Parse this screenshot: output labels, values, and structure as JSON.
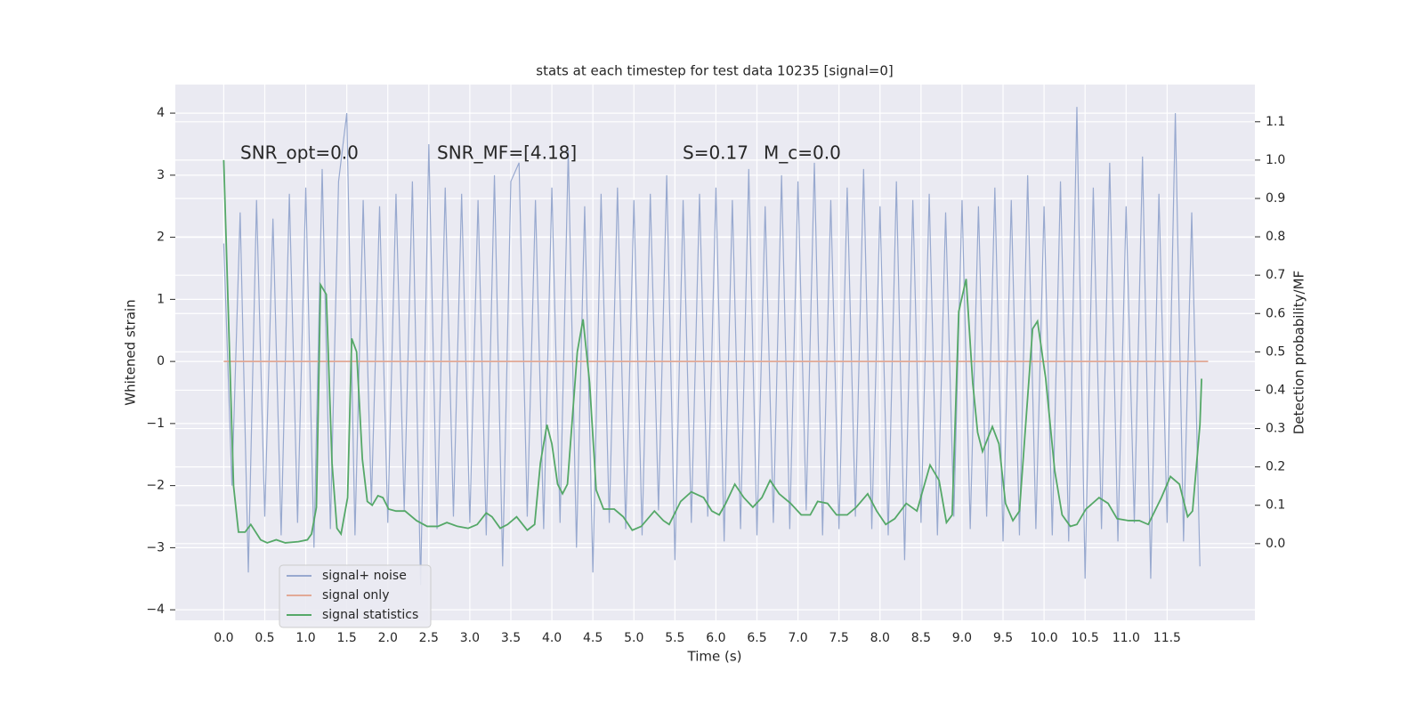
{
  "chart_data": {
    "type": "line",
    "title": "stats at each timestep for test data 10235 [signal=0]",
    "xlabel": "Time (s)",
    "ylabel": "Whitened strain",
    "y2label": "Detection probability/MF",
    "annotations": [
      "SNR_opt=0.0",
      "SNR_MF=[4.18]",
      "S=0.17",
      "M_c=0.0"
    ],
    "xlim": [
      -0.59,
      12.57
    ],
    "ylim": [
      -4.17,
      4.46
    ],
    "y2lim": [
      -0.2,
      1.197
    ],
    "xticks": [
      {
        "value": 0,
        "label": "0.0"
      },
      {
        "value": 0.5,
        "label": "0.5"
      },
      {
        "value": 1,
        "label": "1.0"
      },
      {
        "value": 1.5,
        "label": "1.5"
      },
      {
        "value": 2,
        "label": "2.0"
      },
      {
        "value": 2.5,
        "label": "2.5"
      },
      {
        "value": 3,
        "label": "3.0"
      },
      {
        "value": 3.5,
        "label": "3.5"
      },
      {
        "value": 4,
        "label": "4.0"
      },
      {
        "value": 4.5,
        "label": "4.5"
      },
      {
        "value": 5,
        "label": "5.0"
      },
      {
        "value": 5.5,
        "label": "5.5"
      },
      {
        "value": 6,
        "label": "6.0"
      },
      {
        "value": 6.5,
        "label": "6.5"
      },
      {
        "value": 7,
        "label": "7.0"
      },
      {
        "value": 7.5,
        "label": "7.5"
      },
      {
        "value": 8,
        "label": "8.0"
      },
      {
        "value": 8.5,
        "label": "8.5"
      },
      {
        "value": 9,
        "label": "9.0"
      },
      {
        "value": 9.5,
        "label": "9.5"
      },
      {
        "value": 10,
        "label": "10.0"
      },
      {
        "value": 10.5,
        "label": "10.5"
      },
      {
        "value": 11,
        "label": "11.0"
      },
      {
        "value": 11.5,
        "label": "11.5"
      }
    ],
    "yticks": [
      {
        "value": -4,
        "label": "−4"
      },
      {
        "value": -3,
        "label": "−3"
      },
      {
        "value": -2,
        "label": "−2"
      },
      {
        "value": -1,
        "label": "−1"
      },
      0,
      1,
      2,
      3,
      4
    ],
    "y2ticks": [
      {
        "value": 0,
        "label": "0.0"
      },
      {
        "value": 0.1,
        "label": "0.1"
      },
      {
        "value": 0.2,
        "label": "0.2"
      },
      {
        "value": 0.3,
        "label": "0.3"
      },
      {
        "value": 0.4,
        "label": "0.4"
      },
      {
        "value": 0.5,
        "label": "0.5"
      },
      {
        "value": 0.6,
        "label": "0.6"
      },
      {
        "value": 0.7,
        "label": "0.7"
      },
      {
        "value": 0.8,
        "label": "0.8"
      },
      {
        "value": 0.9,
        "label": "0.9"
      },
      {
        "value": 1,
        "label": "1.0"
      },
      {
        "value": 1.1,
        "label": "1.1"
      }
    ],
    "grid": true,
    "legend": "lower left",
    "series": [
      {
        "name": "signal+ noise",
        "color": "#98a9cf",
        "x": [
          0,
          0.1,
          0.2,
          0.3,
          0.4,
          0.5,
          0.6,
          0.7,
          0.8,
          0.9,
          1,
          1.1,
          1.2,
          1.3,
          1.4,
          1.5,
          1.6,
          1.7,
          1.8,
          1.9,
          2,
          2.1,
          2.2,
          2.3,
          2.4,
          2.5,
          2.6,
          2.7,
          2.8,
          2.9,
          3,
          3.1,
          3.2,
          3.3,
          3.4,
          3.5,
          3.6,
          3.7,
          3.8,
          3.9,
          4,
          4.1,
          4.2,
          4.3,
          4.4,
          4.5,
          4.6,
          4.7,
          4.8,
          4.9,
          5,
          5.1,
          5.2,
          5.3,
          5.4,
          5.5,
          5.6,
          5.7,
          5.8,
          5.9,
          6,
          6.1,
          6.2,
          6.3,
          6.4,
          6.5,
          6.6,
          6.7,
          6.8,
          6.9,
          7,
          7.1,
          7.2,
          7.3,
          7.4,
          7.5,
          7.6,
          7.7,
          7.8,
          7.9,
          8,
          8.1,
          8.2,
          8.3,
          8.4,
          8.5,
          8.6,
          8.7,
          8.8,
          8.9,
          9,
          9.1,
          9.2,
          9.3,
          9.4,
          9.5,
          9.6,
          9.7,
          9.8,
          9.9,
          10,
          10.1,
          10.2,
          10.3,
          10.4,
          10.5,
          10.6,
          10.7,
          10.8,
          10.9,
          11,
          11.1,
          11.2,
          11.3,
          11.4,
          11.5,
          11.6,
          11.7,
          11.8,
          11.9
        ],
        "values": [
          1.9,
          -2.0,
          2.4,
          -3.4,
          2.6,
          -2.5,
          2.3,
          -2.8,
          2.7,
          -2.6,
          2.8,
          -3.0,
          3.1,
          -2.7,
          2.9,
          4.0,
          -2.8,
          2.6,
          -2.3,
          2.5,
          -2.6,
          2.7,
          -2.4,
          2.9,
          -3.6,
          3.5,
          -2.7,
          2.8,
          -2.5,
          2.7,
          -2.6,
          2.6,
          -2.8,
          3.0,
          -3.3,
          2.9,
          3.2,
          -2.5,
          2.6,
          -2.7,
          2.8,
          -2.6,
          3.4,
          -3.0,
          2.5,
          -3.4,
          2.7,
          -2.6,
          2.8,
          -2.7,
          2.6,
          -2.8,
          2.7,
          -2.4,
          3.0,
          -3.2,
          2.6,
          -2.6,
          2.7,
          -2.5,
          2.8,
          -2.9,
          2.6,
          -2.7,
          3.1,
          -2.8,
          2.5,
          -2.6,
          3.0,
          -2.7,
          2.9,
          -2.4,
          3.2,
          -2.8,
          2.6,
          -2.7,
          2.8,
          -2.5,
          3.1,
          -2.7,
          2.5,
          -2.8,
          2.9,
          -3.2,
          2.6,
          -2.6,
          2.7,
          -2.8,
          2.4,
          -2.5,
          2.6,
          -2.7,
          2.5,
          -2.5,
          2.8,
          -2.9,
          2.6,
          -2.8,
          3.0,
          -2.7,
          2.5,
          -2.8,
          2.9,
          -2.9,
          4.1,
          -3.5,
          2.8,
          -2.7,
          3.2,
          -2.9,
          2.5,
          -2.6,
          3.3,
          -3.5,
          2.7,
          -2.6,
          4.0,
          -2.9,
          2.4,
          -3.3
        ]
      },
      {
        "name": "signal only",
        "color": "#e2a996",
        "x": [
          0,
          12
        ],
        "values": [
          0,
          0
        ]
      },
      {
        "name": "signal statistics",
        "color": "#55a868",
        "axis": "y2",
        "x": [
          0,
          0.12,
          0.18,
          0.26,
          0.33,
          0.45,
          0.53,
          0.64,
          0.75,
          0.91,
          1.02,
          1.07,
          1.13,
          1.18,
          1.25,
          1.32,
          1.38,
          1.43,
          1.51,
          1.56,
          1.62,
          1.69,
          1.75,
          1.81,
          1.88,
          1.94,
          2.01,
          2.1,
          2.21,
          2.35,
          2.48,
          2.61,
          2.72,
          2.85,
          2.98,
          3.09,
          3.2,
          3.27,
          3.37,
          3.46,
          3.57,
          3.7,
          3.79,
          3.86,
          3.94,
          4.0,
          4.07,
          4.13,
          4.19,
          4.31,
          4.38,
          4.46,
          4.54,
          4.63,
          4.76,
          4.87,
          4.98,
          5.09,
          5.25,
          5.36,
          5.43,
          5.57,
          5.7,
          5.85,
          5.95,
          6.04,
          6.12,
          6.23,
          6.34,
          6.45,
          6.56,
          6.66,
          6.77,
          6.91,
          7.04,
          7.15,
          7.24,
          7.36,
          7.47,
          7.6,
          7.71,
          7.85,
          7.96,
          8.07,
          8.18,
          8.32,
          8.45,
          8.61,
          8.72,
          8.81,
          8.88,
          8.96,
          9.05,
          9.13,
          9.19,
          9.25,
          9.37,
          9.45,
          9.53,
          9.62,
          9.7,
          9.86,
          9.92,
          10.02,
          10.13,
          10.22,
          10.32,
          10.4,
          10.51,
          10.67,
          10.78,
          10.89,
          11.03,
          11.16,
          11.27,
          11.43,
          11.54,
          11.65,
          11.75,
          11.81,
          11.9,
          11.92
        ],
        "values": [
          1.0,
          0.15,
          0.03,
          0.03,
          0.05,
          0.01,
          0.002,
          0.01,
          0.002,
          0.005,
          0.01,
          0.025,
          0.095,
          0.675,
          0.65,
          0.21,
          0.04,
          0.025,
          0.12,
          0.535,
          0.5,
          0.22,
          0.11,
          0.1,
          0.125,
          0.12,
          0.09,
          0.085,
          0.085,
          0.06,
          0.045,
          0.045,
          0.055,
          0.045,
          0.04,
          0.05,
          0.08,
          0.07,
          0.04,
          0.05,
          0.07,
          0.035,
          0.05,
          0.21,
          0.31,
          0.26,
          0.155,
          0.13,
          0.155,
          0.5,
          0.585,
          0.42,
          0.14,
          0.09,
          0.09,
          0.07,
          0.035,
          0.045,
          0.085,
          0.06,
          0.05,
          0.11,
          0.135,
          0.12,
          0.085,
          0.075,
          0.105,
          0.155,
          0.12,
          0.095,
          0.12,
          0.165,
          0.13,
          0.105,
          0.075,
          0.075,
          0.11,
          0.105,
          0.075,
          0.075,
          0.095,
          0.13,
          0.085,
          0.05,
          0.065,
          0.105,
          0.085,
          0.205,
          0.165,
          0.055,
          0.075,
          0.605,
          0.69,
          0.42,
          0.29,
          0.24,
          0.305,
          0.26,
          0.105,
          0.06,
          0.085,
          0.56,
          0.58,
          0.43,
          0.19,
          0.075,
          0.045,
          0.05,
          0.09,
          0.12,
          0.105,
          0.065,
          0.06,
          0.06,
          0.05,
          0.12,
          0.175,
          0.155,
          0.07,
          0.085,
          0.31,
          0.43
        ]
      }
    ]
  }
}
